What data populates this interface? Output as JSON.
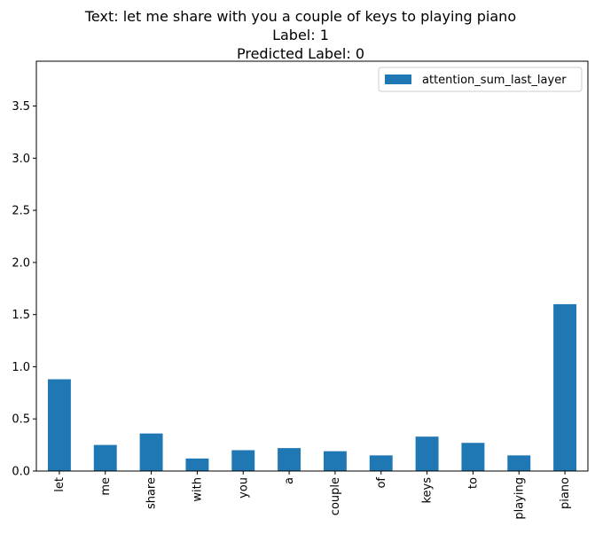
{
  "chart_data": {
    "type": "bar",
    "title_lines": [
      "Text: let me share with you a couple of keys to playing piano",
      "Label: 1",
      "Predicted Label: 0"
    ],
    "xlabel": "",
    "ylabel": "",
    "categories": [
      "let",
      "me",
      "share",
      "with",
      "you",
      "a",
      "couple",
      "of",
      "keys",
      "to",
      "playing",
      "piano"
    ],
    "series": [
      {
        "name": "attention_sum_last_layer",
        "values": [
          0.88,
          0.25,
          0.36,
          0.12,
          0.2,
          0.22,
          0.19,
          0.15,
          0.33,
          0.27,
          0.15,
          1.6
        ]
      }
    ],
    "ylim": [
      0,
      3.93
    ],
    "yticks": [
      "0.0",
      "0.5",
      "1.0",
      "1.5",
      "2.0",
      "2.5",
      "3.0",
      "3.5"
    ],
    "grid": false,
    "legend": "top-right",
    "colors": {
      "bar": "#1f77b4",
      "axis": "#000000",
      "legend_border": "#cccccc"
    }
  }
}
